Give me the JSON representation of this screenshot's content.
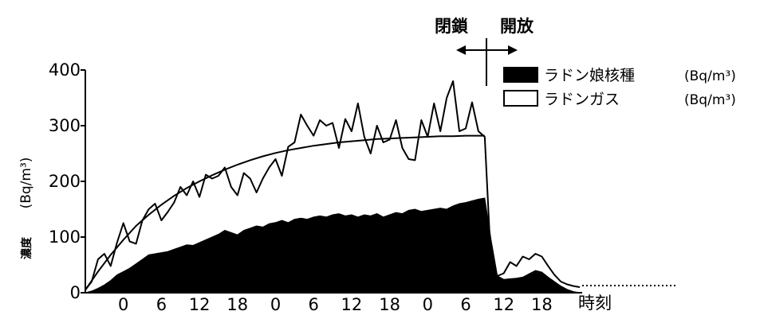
{
  "chart_data": {
    "type": "line",
    "ylabel": "濃度",
    "ylabel_unit": "(Bq/m³)",
    "ylim": [
      0,
      400
    ],
    "yticks": [
      0,
      100,
      200,
      300,
      400
    ],
    "xaxis": {
      "unit_label": "時刻",
      "ticks": [
        {
          "x": 6,
          "label": "0"
        },
        {
          "x": 12,
          "label": "6"
        },
        {
          "x": 18,
          "label": "12"
        },
        {
          "x": 24,
          "label": "18"
        },
        {
          "x": 30,
          "label": "0"
        },
        {
          "x": 36,
          "label": "6"
        },
        {
          "x": 42,
          "label": "12"
        },
        {
          "x": 48,
          "label": "18"
        },
        {
          "x": 54,
          "label": "0"
        },
        {
          "x": 60,
          "label": "6"
        },
        {
          "x": 66,
          "label": "12"
        },
        {
          "x": 72,
          "label": "18"
        }
      ],
      "range": [
        0,
        84
      ]
    },
    "legend": {
      "position": "top-right",
      "unit_text": "(Bq/m³)",
      "entries": [
        {
          "label": "ラドン娘核種",
          "style": "filled"
        },
        {
          "label": "ラドンガス",
          "style": "open"
        }
      ]
    },
    "annotations": {
      "closed_label": "閉鎖",
      "open_label": "開放",
      "change_x": 63.5
    },
    "series": [
      {
        "name": "ラドン娘核種",
        "style": "area",
        "x": [
          0,
          1,
          2,
          3,
          4,
          5,
          6,
          7,
          8,
          9,
          10,
          11,
          12,
          13,
          14,
          15,
          16,
          17,
          18,
          19,
          20,
          21,
          22,
          23,
          24,
          25,
          26,
          27,
          28,
          29,
          30,
          31,
          32,
          33,
          34,
          35,
          36,
          37,
          38,
          39,
          40,
          41,
          42,
          43,
          44,
          45,
          46,
          47,
          48,
          49,
          50,
          51,
          52,
          53,
          54,
          55,
          56,
          57,
          58,
          59,
          60,
          61,
          62,
          63,
          64,
          65,
          66,
          67,
          68,
          69,
          70,
          71,
          72,
          73,
          74,
          75,
          76,
          77,
          78
        ],
        "values": [
          0,
          3,
          8,
          14,
          22,
          32,
          38,
          44,
          52,
          60,
          68,
          70,
          72,
          74,
          78,
          82,
          86,
          85,
          90,
          95,
          100,
          105,
          112,
          108,
          104,
          112,
          116,
          120,
          118,
          124,
          126,
          130,
          126,
          132,
          134,
          132,
          136,
          138,
          136,
          140,
          142,
          138,
          140,
          136,
          140,
          138,
          142,
          136,
          140,
          144,
          142,
          148,
          150,
          146,
          148,
          150,
          152,
          150,
          156,
          160,
          162,
          165,
          168,
          170,
          95,
          30,
          24,
          25,
          26,
          28,
          34,
          40,
          37,
          28,
          20,
          12,
          6,
          2,
          0
        ]
      },
      {
        "name": "ラドンガス",
        "style": "line",
        "x": [
          0,
          1,
          2,
          3,
          4,
          5,
          6,
          7,
          8,
          9,
          10,
          11,
          12,
          13,
          14,
          15,
          16,
          17,
          18,
          19,
          20,
          21,
          22,
          23,
          24,
          25,
          26,
          27,
          28,
          29,
          30,
          31,
          32,
          33,
          34,
          35,
          36,
          37,
          38,
          39,
          40,
          41,
          42,
          43,
          44,
          45,
          46,
          47,
          48,
          49,
          50,
          51,
          52,
          53,
          54,
          55,
          56,
          57,
          58,
          59,
          60,
          61,
          62,
          63,
          64,
          65,
          66,
          67,
          68,
          69,
          70,
          71,
          72,
          73,
          74,
          75,
          76,
          77,
          78
        ],
        "values": [
          5,
          20,
          60,
          70,
          48,
          90,
          125,
          92,
          88,
          130,
          150,
          160,
          130,
          145,
          162,
          190,
          175,
          200,
          172,
          212,
          205,
          210,
          225,
          190,
          175,
          215,
          205,
          180,
          205,
          225,
          240,
          210,
          262,
          270,
          320,
          300,
          282,
          310,
          300,
          305,
          260,
          312,
          290,
          340,
          280,
          250,
          300,
          270,
          275,
          310,
          260,
          240,
          238,
          310,
          280,
          340,
          290,
          350,
          380,
          290,
          295,
          342,
          290,
          280,
          50,
          30,
          35,
          55,
          48,
          65,
          60,
          70,
          65,
          48,
          32,
          20,
          15,
          12,
          10
        ]
      },
      {
        "name": "",
        "style": "smooth-fit",
        "x": [
          0,
          2,
          4,
          6,
          8,
          10,
          12,
          14,
          16,
          18,
          20,
          22,
          24,
          26,
          28,
          30,
          32,
          34,
          36,
          38,
          40,
          42,
          44,
          46,
          48,
          50,
          52,
          54,
          56,
          58,
          60,
          62,
          63
        ],
        "values": [
          5,
          38,
          68,
          95,
          120,
          140,
          158,
          174,
          188,
          200,
          211,
          221,
          230,
          238,
          245,
          251,
          256,
          260,
          264,
          267,
          270,
          272,
          274,
          276,
          277,
          278,
          279,
          280,
          281,
          281,
          282,
          282,
          282
        ]
      }
    ]
  }
}
